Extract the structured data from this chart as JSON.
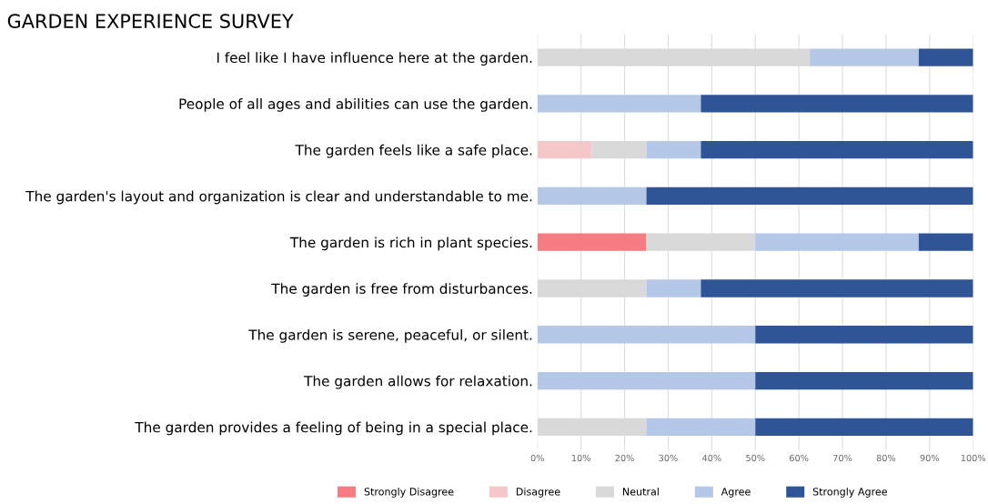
{
  "chart_data": {
    "type": "bar",
    "title": "GARDEN EXPERIENCE SURVEY",
    "orientation": "horizontal",
    "stacked": true,
    "categories": [
      "I feel like I have influence here at the garden.",
      "People of all ages and abilities can use the garden.",
      "The garden feels like a safe place.",
      "The garden's layout and organization is clear and understandable to me.",
      "The garden is rich in plant species.",
      "The garden is free from disturbances.",
      "The garden is serene, peaceful, or silent.",
      "The garden allows for relaxation.",
      "The garden provides a feeling of being in a special place."
    ],
    "series": [
      {
        "name": "Strongly Disagree",
        "color": "#f47c82",
        "values": [
          0,
          0,
          0,
          0,
          25,
          0,
          0,
          0,
          0
        ]
      },
      {
        "name": "Disagree",
        "color": "#f4c7c9",
        "values": [
          0,
          0,
          12.5,
          0,
          0,
          0,
          0,
          0,
          0
        ]
      },
      {
        "name": "Neutral",
        "color": "#d9d9d9",
        "values": [
          62.5,
          0,
          12.5,
          0,
          25,
          25,
          0,
          0,
          25
        ]
      },
      {
        "name": "Agree",
        "color": "#b4c7e7",
        "values": [
          25,
          37.5,
          12.5,
          25,
          37.5,
          12.5,
          50,
          50,
          25
        ]
      },
      {
        "name": "Strongly Agree",
        "color": "#2f5597",
        "values": [
          12.5,
          62.5,
          62.5,
          75,
          12.5,
          62.5,
          50,
          50,
          50
        ]
      }
    ],
    "xlim": [
      0,
      100
    ],
    "xticks": [
      {
        "value": 0,
        "label": "0%"
      },
      {
        "value": 10,
        "label": "10%"
      },
      {
        "value": 20,
        "label": "20%"
      },
      {
        "value": 30,
        "label": "30%"
      },
      {
        "value": 40,
        "label": "40%"
      },
      {
        "value": 50,
        "label": "50%"
      },
      {
        "value": 60,
        "label": "60%"
      },
      {
        "value": 70,
        "label": "70%"
      },
      {
        "value": 80,
        "label": "80%"
      },
      {
        "value": 90,
        "label": "90%"
      },
      {
        "value": 100,
        "label": "100%"
      }
    ],
    "grid": "x",
    "legend": "bottom"
  }
}
